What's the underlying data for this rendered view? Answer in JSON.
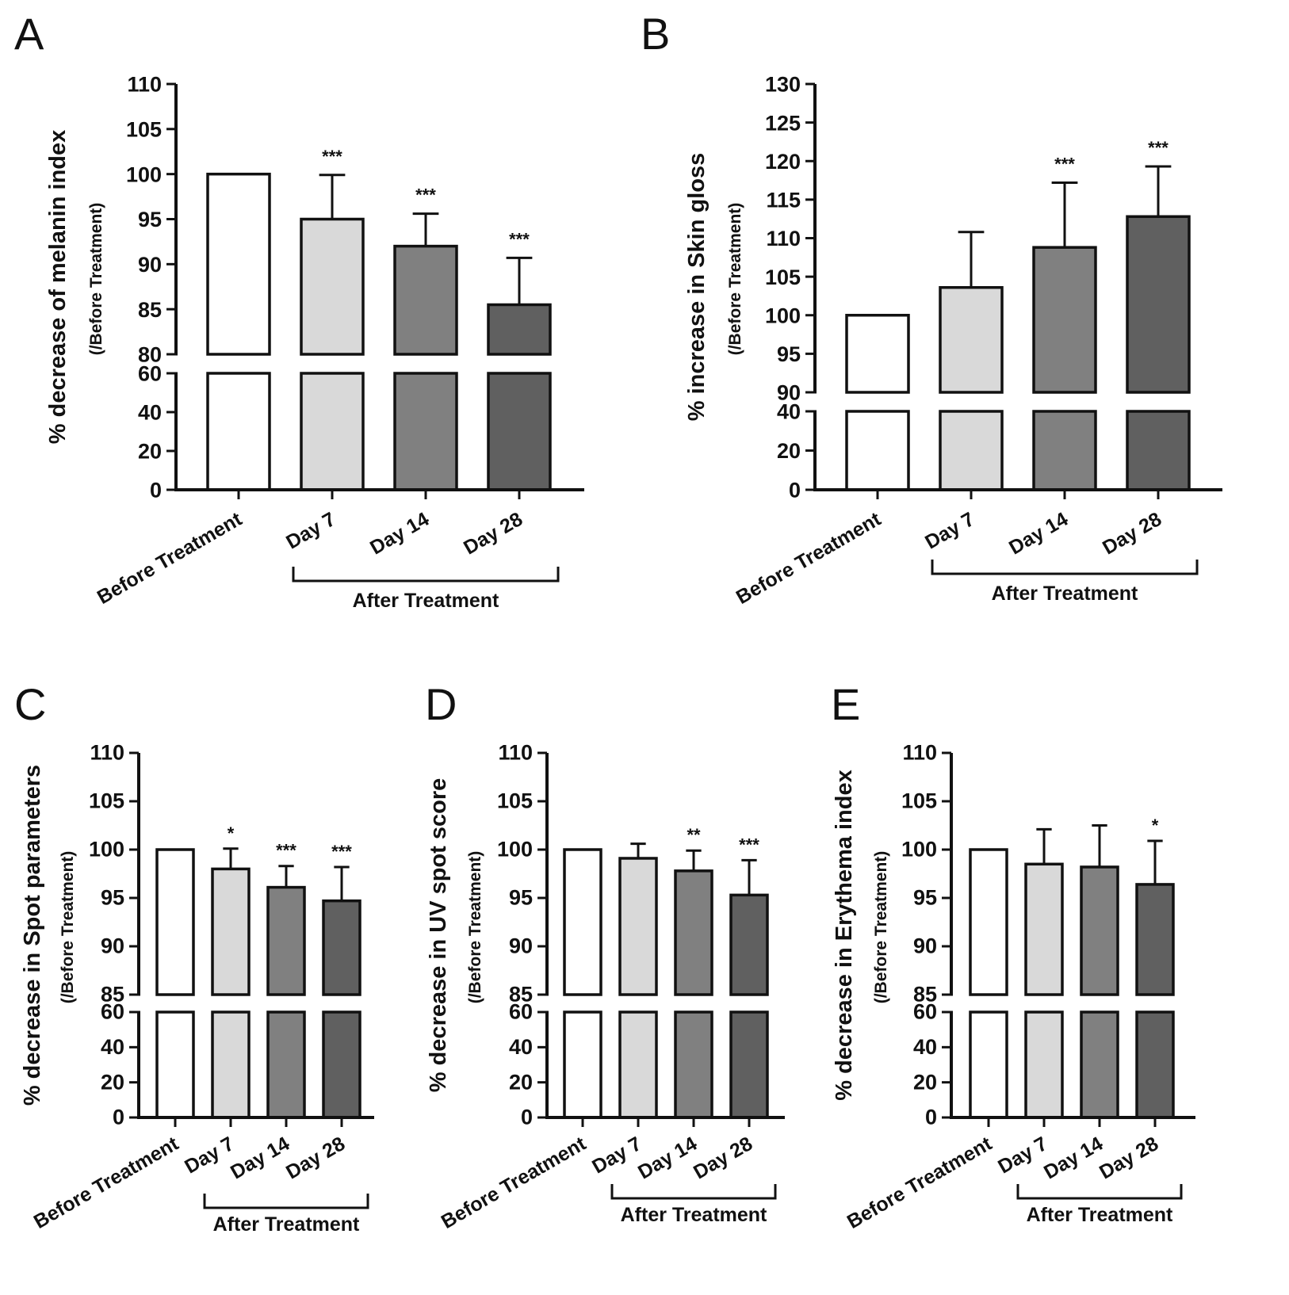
{
  "chart_data": [
    {
      "type": "bar",
      "panel": "A",
      "ylabel": "% decrease of melanin index",
      "ylabel_sub": "(/Before Treatment)",
      "categories": [
        "Before Treatment",
        "Day 7",
        "Day 14",
        "Day 28"
      ],
      "group_label": "After Treatment",
      "values": [
        100,
        95,
        92,
        85.5
      ],
      "errors": [
        0,
        4.9,
        3.6,
        5.2
      ],
      "significance": [
        "",
        "***",
        "***",
        "***"
      ],
      "y_axis_break": true,
      "ylim_lower": [
        0,
        60
      ],
      "yticks_lower": [
        0,
        20,
        40,
        60
      ],
      "ylim_upper": [
        80,
        110
      ],
      "yticks_upper": [
        80,
        85,
        90,
        95,
        100,
        105,
        110
      ],
      "colors": [
        "#ffffff",
        "#d9d9d9",
        "#808080",
        "#606060"
      ]
    },
    {
      "type": "bar",
      "panel": "B",
      "ylabel": "% increase in Skin gloss",
      "ylabel_sub": "(/Before Treatment)",
      "categories": [
        "Before Treatment",
        "Day 7",
        "Day 14",
        "Day 28"
      ],
      "group_label": "After Treatment",
      "values": [
        100,
        103.6,
        108.8,
        112.8
      ],
      "errors": [
        0,
        7.2,
        8.4,
        6.5
      ],
      "significance": [
        "",
        "",
        "***",
        "***"
      ],
      "y_axis_break": true,
      "ylim_lower": [
        0,
        40
      ],
      "yticks_lower": [
        0,
        20,
        40
      ],
      "ylim_upper": [
        90,
        130
      ],
      "yticks_upper": [
        90,
        95,
        100,
        105,
        110,
        115,
        120,
        125,
        130
      ],
      "colors": [
        "#ffffff",
        "#d9d9d9",
        "#808080",
        "#606060"
      ]
    },
    {
      "type": "bar",
      "panel": "C",
      "ylabel": "% decrease in Spot parameters",
      "ylabel_sub": "(/Before Treatment)",
      "categories": [
        "Before Treatment",
        "Day 7",
        "Day 14",
        "Day 28"
      ],
      "group_label": "After Treatment",
      "values": [
        100,
        98,
        96.1,
        94.7
      ],
      "errors": [
        0,
        2.1,
        2.2,
        3.5
      ],
      "significance": [
        "",
        "*",
        "***",
        "***"
      ],
      "y_axis_break": true,
      "ylim_lower": [
        0,
        60
      ],
      "yticks_lower": [
        0,
        20,
        40,
        60
      ],
      "ylim_upper": [
        85,
        110
      ],
      "yticks_upper": [
        85,
        90,
        95,
        100,
        105,
        110
      ],
      "colors": [
        "#ffffff",
        "#d9d9d9",
        "#808080",
        "#606060"
      ]
    },
    {
      "type": "bar",
      "panel": "D",
      "ylabel": "% decrease in UV spot score",
      "ylabel_sub": "(/Before Treatment)",
      "categories": [
        "Before Treatment",
        "Day 7",
        "Day 14",
        "Day 28"
      ],
      "group_label": "After Treatment",
      "values": [
        100,
        99.1,
        97.8,
        95.3
      ],
      "errors": [
        0,
        1.5,
        2.1,
        3.6
      ],
      "significance": [
        "",
        "",
        "**",
        "***"
      ],
      "y_axis_break": true,
      "ylim_lower": [
        0,
        60
      ],
      "yticks_lower": [
        0,
        20,
        40,
        60
      ],
      "ylim_upper": [
        85,
        110
      ],
      "yticks_upper": [
        85,
        90,
        95,
        100,
        105,
        110
      ],
      "colors": [
        "#ffffff",
        "#d9d9d9",
        "#808080",
        "#606060"
      ]
    },
    {
      "type": "bar",
      "panel": "E",
      "ylabel": "% decrease in Erythema index",
      "ylabel_sub": "(/Before Treatment)",
      "categories": [
        "Before Treatment",
        "Day 7",
        "Day 14",
        "Day 28"
      ],
      "group_label": "After Treatment",
      "values": [
        100,
        98.5,
        98.2,
        96.4
      ],
      "errors": [
        0,
        3.6,
        4.3,
        4.5
      ],
      "significance": [
        "",
        "",
        "",
        "*"
      ],
      "y_axis_break": true,
      "ylim_lower": [
        0,
        60
      ],
      "yticks_lower": [
        0,
        20,
        40,
        60
      ],
      "ylim_upper": [
        85,
        110
      ],
      "yticks_upper": [
        85,
        90,
        95,
        100,
        105,
        110
      ],
      "colors": [
        "#ffffff",
        "#d9d9d9",
        "#808080",
        "#606060"
      ]
    }
  ]
}
